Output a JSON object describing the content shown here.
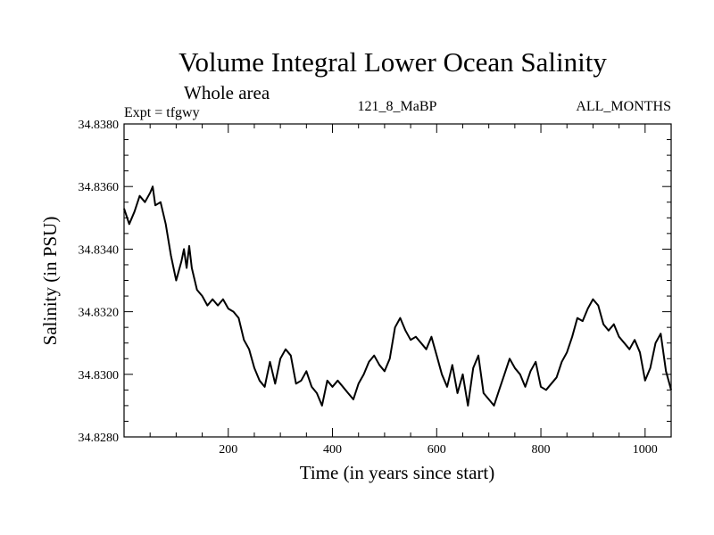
{
  "chart_data": {
    "type": "line",
    "title": "Volume Integral Lower Ocean Salinity",
    "subtitle": "Whole area",
    "annotations": {
      "left": "Expt = tfgwy",
      "center": "121_8_MaBP",
      "right": "ALL_MONTHS"
    },
    "xlabel": "Time (in years since start)",
    "ylabel": "Salinity (in PSU)",
    "xlim": [
      0,
      1050
    ],
    "ylim": [
      34.828,
      34.838
    ],
    "x_ticks": [
      200,
      400,
      600,
      800,
      1000
    ],
    "x_tick_labels": [
      "200",
      "400",
      "600",
      "800",
      "1000"
    ],
    "y_ticks": [
      34.828,
      34.83,
      34.832,
      34.834,
      34.836,
      34.838
    ],
    "y_tick_labels": [
      "34.8280",
      "34.8300",
      "34.8320",
      "34.8340",
      "34.8360",
      "34.8380"
    ],
    "grid": false,
    "legend": "none",
    "series": [
      {
        "name": "salinity",
        "color": "#000000",
        "x": [
          0,
          10,
          20,
          30,
          40,
          50,
          55,
          60,
          70,
          80,
          90,
          100,
          110,
          115,
          120,
          125,
          130,
          140,
          150,
          160,
          170,
          180,
          190,
          200,
          210,
          220,
          230,
          240,
          250,
          260,
          270,
          275,
          280,
          290,
          300,
          310,
          320,
          330,
          340,
          350,
          360,
          370,
          380,
          390,
          400,
          410,
          420,
          430,
          440,
          450,
          460,
          470,
          480,
          490,
          500,
          510,
          520,
          530,
          540,
          550,
          560,
          570,
          580,
          590,
          600,
          610,
          620,
          630,
          640,
          650,
          660,
          670,
          680,
          690,
          700,
          710,
          720,
          730,
          740,
          750,
          760,
          770,
          780,
          790,
          800,
          810,
          820,
          830,
          840,
          850,
          860,
          870,
          880,
          890,
          900,
          910,
          920,
          930,
          940,
          950,
          960,
          970,
          980,
          990,
          1000,
          1010,
          1020,
          1030,
          1040,
          1050
        ],
        "y": [
          34.8353,
          34.8348,
          34.8352,
          34.8357,
          34.8355,
          34.8358,
          34.836,
          34.8354,
          34.8355,
          34.8348,
          34.8338,
          34.833,
          34.8336,
          34.834,
          34.8334,
          34.8341,
          34.8334,
          34.8327,
          34.8325,
          34.8322,
          34.8324,
          34.8322,
          34.8324,
          34.8321,
          34.832,
          34.8318,
          34.8311,
          34.8308,
          34.8302,
          34.8298,
          34.8296,
          34.83,
          34.8304,
          34.8297,
          34.8305,
          34.8308,
          34.8306,
          34.8297,
          34.8298,
          34.8301,
          34.8296,
          34.8294,
          34.829,
          34.8298,
          34.8296,
          34.8298,
          34.8296,
          34.8294,
          34.8292,
          34.8297,
          34.83,
          34.8304,
          34.8306,
          34.8303,
          34.8301,
          34.8305,
          34.8315,
          34.8318,
          34.8314,
          34.8311,
          34.8312,
          34.831,
          34.8308,
          34.8312,
          34.8306,
          34.83,
          34.8296,
          34.8303,
          34.8294,
          34.83,
          34.829,
          34.8302,
          34.8306,
          34.8294,
          34.8292,
          34.829,
          34.8295,
          34.83,
          34.8305,
          34.8302,
          34.83,
          34.8296,
          34.8301,
          34.8304,
          34.8296,
          34.8295,
          34.8297,
          34.8299,
          34.8304,
          34.8307,
          34.8312,
          34.8318,
          34.8317,
          34.8321,
          34.8324,
          34.8322,
          34.8316,
          34.8314,
          34.8316,
          34.8312,
          34.831,
          34.8308,
          34.8311,
          34.8307,
          34.8298,
          34.8302,
          34.831,
          34.8313,
          34.8301,
          34.8295
        ]
      }
    ]
  }
}
